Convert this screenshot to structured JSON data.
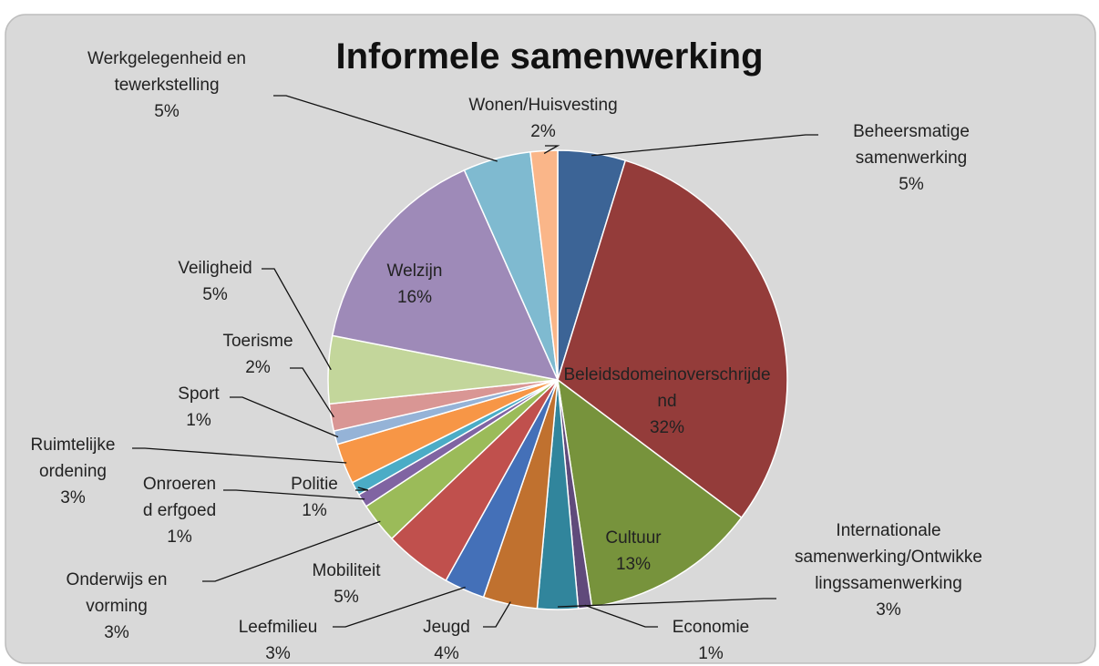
{
  "chart_data": {
    "type": "pie",
    "title": "Informele samenwerking",
    "categories": [
      "Beheersmatige samenwerking",
      "Beleidsdomeinoverschrijdend",
      "Cultuur",
      "Economie",
      "Internationale samenwerking/Ontwikkelingssamenwerking",
      "Jeugd",
      "Leefmilieu",
      "Mobiliteit",
      "Onderwijs en vorming",
      "Onroerend erfgoed",
      "Politie",
      "Ruimtelijke ordening",
      "Sport",
      "Toerisme",
      "Veiligheid",
      "Welzijn",
      "Werkgelegenheid en tewerkstelling",
      "Wonen/Huisvesting"
    ],
    "values": [
      5,
      32,
      13,
      1,
      3,
      4,
      3,
      5,
      3,
      1,
      1,
      3,
      1,
      2,
      5,
      16,
      5,
      2
    ],
    "value_labels": [
      "5%",
      "32%",
      "13%",
      "1%",
      "3%",
      "4%",
      "3%",
      "5%",
      "3%",
      "1%",
      "1%",
      "3%",
      "1%",
      "2%",
      "5%",
      "16%",
      "5%",
      "2%"
    ],
    "colors": [
      "#3c6496",
      "#943c3a",
      "#77933c",
      "#604a7b",
      "#31859c",
      "#c0712f",
      "#4470b8",
      "#c0504d",
      "#9bbb59",
      "#8064a2",
      "#4bacc6",
      "#f79646",
      "#95b3d7",
      "#d99694",
      "#c3d69b",
      "#9e8ab8",
      "#7fbad0",
      "#fab689"
    ]
  }
}
